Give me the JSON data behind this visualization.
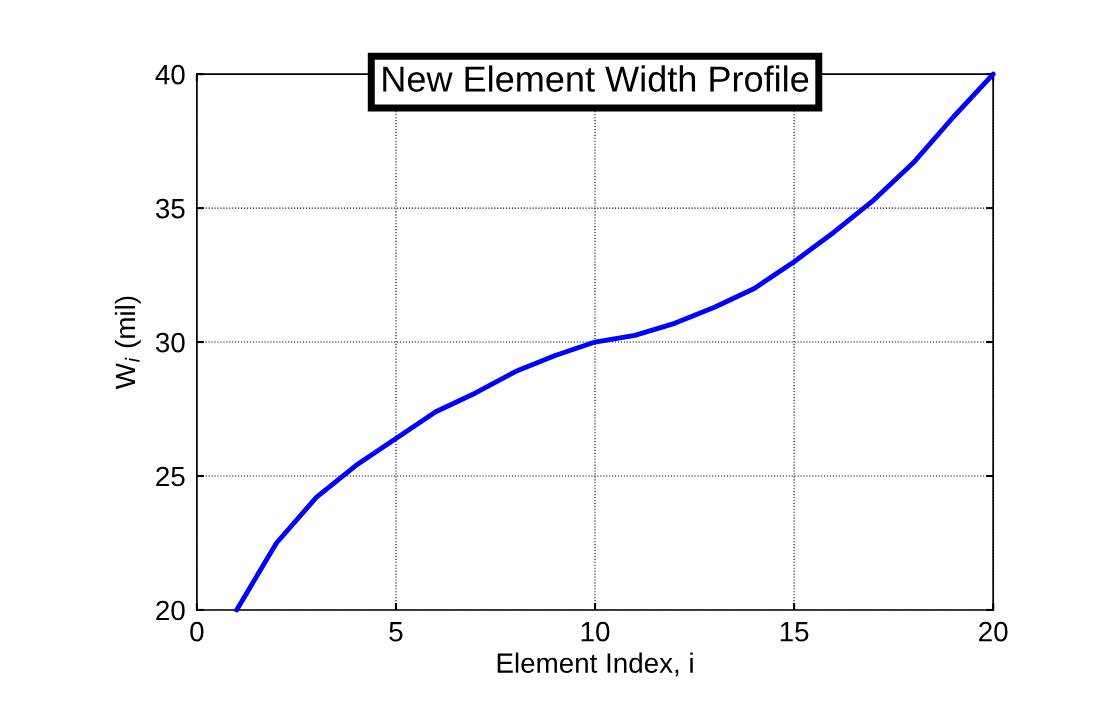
{
  "chart_data": {
    "type": "line",
    "title": "New Element Width Profile",
    "xlabel": "Element Index, i",
    "ylabel": "W$_{i}$ (mil)",
    "x": [
      1,
      2,
      3,
      4,
      5,
      6,
      7,
      8,
      9,
      10,
      11,
      12,
      13,
      14,
      15,
      16,
      17,
      18,
      19,
      20
    ],
    "series": [
      {
        "color": "#0000ff",
        "values": [
          20,
          22.5,
          24.2,
          25.4,
          26.4,
          27.4,
          28.1,
          28.9,
          29.5,
          30,
          30.25,
          30.7,
          31.3,
          32,
          33,
          34.1,
          35.3,
          36.7,
          38.4,
          40
        ]
      }
    ],
    "xlim": [
      0,
      20
    ],
    "xticks": [
      0,
      5,
      10,
      15,
      20
    ],
    "ylim": [
      20,
      40
    ],
    "yticks": [
      20,
      25,
      30,
      35,
      40
    ],
    "grid": true,
    "marker": "none",
    "line_style": "solid"
  }
}
